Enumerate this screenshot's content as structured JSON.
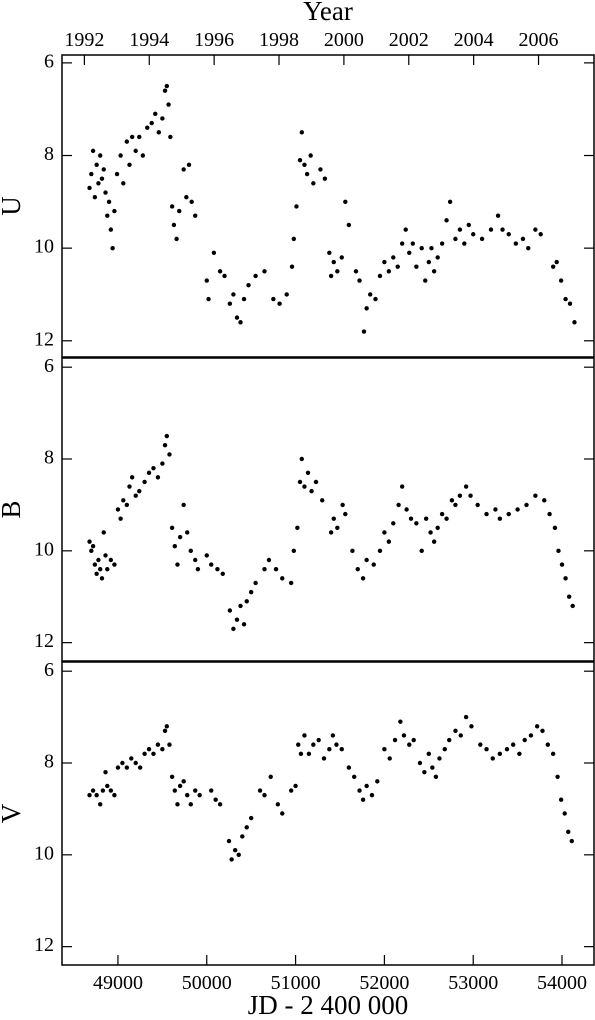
{
  "chart_data": [
    {
      "type": "scatter",
      "ylabel": "U",
      "x2label": "Year",
      "color": "#000000",
      "xlim": [
        48370,
        54360
      ],
      "ylim": [
        5.83,
        12.35
      ],
      "y_inverted": true,
      "yticks": [
        6,
        8,
        10,
        12
      ],
      "x2lim": [
        1991.31,
        2007.71
      ],
      "x2ticks": [
        1992,
        1994,
        1996,
        1998,
        2000,
        2002,
        2004,
        2006
      ],
      "x": [
        48680,
        48700,
        48720,
        48740,
        48760,
        48780,
        48800,
        48820,
        48840,
        48860,
        48880,
        48900,
        48920,
        48940,
        48960,
        48990,
        49030,
        49060,
        49100,
        49130,
        49160,
        49200,
        49240,
        49280,
        49330,
        49380,
        49420,
        49460,
        49500,
        49530,
        49550,
        49570,
        49590,
        49610,
        49630,
        49660,
        49690,
        49740,
        49770,
        49800,
        49830,
        49870,
        50000,
        50020,
        50080,
        50150,
        50200,
        50260,
        50300,
        50340,
        50380,
        50420,
        50470,
        50550,
        50650,
        50750,
        50820,
        50900,
        50960,
        50980,
        51010,
        51050,
        51070,
        51100,
        51130,
        51170,
        51200,
        51280,
        51330,
        51380,
        51400,
        51430,
        51470,
        51520,
        51560,
        51600,
        51680,
        51720,
        51770,
        51800,
        51840,
        51900,
        51950,
        52000,
        52050,
        52100,
        52150,
        52200,
        52240,
        52280,
        52320,
        52360,
        52420,
        52460,
        52500,
        52530,
        52560,
        52600,
        52650,
        52700,
        52740,
        52800,
        52850,
        52900,
        52950,
        53000,
        53100,
        53200,
        53280,
        53330,
        53400,
        53480,
        53560,
        53620,
        53700,
        53760,
        53900,
        53940,
        53990,
        54040,
        54090,
        54140
      ],
      "values": [
        8.7,
        8.4,
        7.9,
        8.9,
        8.2,
        8.6,
        8.0,
        8.5,
        8.3,
        8.8,
        9.3,
        9.0,
        9.6,
        10.0,
        9.2,
        8.4,
        8.0,
        8.6,
        7.7,
        8.2,
        7.6,
        7.9,
        7.6,
        8.0,
        7.4,
        7.3,
        7.1,
        7.5,
        7.2,
        6.6,
        6.5,
        6.9,
        7.6,
        9.1,
        9.5,
        9.8,
        9.2,
        8.3,
        8.9,
        8.2,
        9.0,
        9.3,
        10.7,
        11.1,
        10.1,
        10.5,
        10.6,
        11.2,
        11.0,
        11.5,
        11.6,
        11.1,
        10.8,
        10.6,
        10.5,
        11.1,
        11.2,
        11.0,
        10.4,
        9.8,
        9.1,
        8.1,
        7.5,
        8.2,
        8.4,
        8.0,
        8.6,
        8.3,
        8.5,
        10.1,
        10.6,
        10.3,
        10.5,
        10.2,
        9.0,
        9.5,
        10.5,
        10.7,
        11.8,
        11.3,
        11.0,
        11.1,
        10.6,
        10.3,
        10.5,
        10.2,
        10.4,
        9.9,
        9.6,
        10.1,
        9.9,
        10.4,
        10.0,
        10.7,
        10.3,
        10.0,
        10.5,
        10.2,
        9.9,
        9.4,
        9.0,
        9.8,
        9.6,
        9.9,
        9.5,
        9.7,
        9.8,
        9.6,
        9.3,
        9.6,
        9.7,
        9.9,
        9.8,
        10.0,
        9.6,
        9.7,
        10.4,
        10.3,
        10.7,
        11.1,
        11.2,
        11.6
      ]
    },
    {
      "type": "scatter",
      "ylabel": "B",
      "color": "#000000",
      "xlim": [
        48370,
        54360
      ],
      "ylim": [
        5.8,
        12.4
      ],
      "y_inverted": true,
      "yticks": [
        6,
        8,
        10,
        12
      ],
      "x": [
        48680,
        48700,
        48720,
        48740,
        48760,
        48780,
        48800,
        48820,
        48840,
        48860,
        48880,
        48920,
        48960,
        49000,
        49030,
        49060,
        49100,
        49130,
        49160,
        49200,
        49240,
        49300,
        49350,
        49400,
        49450,
        49500,
        49530,
        49550,
        49580,
        49610,
        49640,
        49670,
        49700,
        49740,
        49780,
        49820,
        49870,
        49900,
        50000,
        50050,
        50120,
        50180,
        50260,
        50300,
        50340,
        50380,
        50420,
        50450,
        50500,
        50550,
        50650,
        50700,
        50780,
        50850,
        50950,
        50980,
        51020,
        51050,
        51070,
        51100,
        51140,
        51180,
        51230,
        51300,
        51400,
        51430,
        51470,
        51530,
        51560,
        51640,
        51700,
        51760,
        51800,
        51880,
        51950,
        52000,
        52050,
        52100,
        52160,
        52200,
        52250,
        52300,
        52360,
        52420,
        52470,
        52520,
        52560,
        52600,
        52650,
        52700,
        52760,
        52800,
        52850,
        52920,
        52970,
        53050,
        53150,
        53250,
        53300,
        53400,
        53500,
        53600,
        53700,
        53800,
        53860,
        53920,
        53960,
        54000,
        54040,
        54080,
        54120
      ],
      "values": [
        9.8,
        10.0,
        9.9,
        10.3,
        10.5,
        10.2,
        10.4,
        10.6,
        9.6,
        10.1,
        10.4,
        10.2,
        10.3,
        9.1,
        9.3,
        8.9,
        9.0,
        8.6,
        8.4,
        8.8,
        8.7,
        8.5,
        8.3,
        8.2,
        8.4,
        8.1,
        7.7,
        7.5,
        7.9,
        9.5,
        9.9,
        10.3,
        9.7,
        9.0,
        9.6,
        10.0,
        10.2,
        10.4,
        10.1,
        10.3,
        10.4,
        10.5,
        11.3,
        11.7,
        11.5,
        11.2,
        11.6,
        11.1,
        10.9,
        10.7,
        10.4,
        10.2,
        10.4,
        10.6,
        10.7,
        10.0,
        9.5,
        8.5,
        8.0,
        8.6,
        8.3,
        8.7,
        8.5,
        8.9,
        9.6,
        9.3,
        9.5,
        9.0,
        9.2,
        10.0,
        10.4,
        10.6,
        10.2,
        10.3,
        10.0,
        9.6,
        9.8,
        9.4,
        9.0,
        8.6,
        9.1,
        9.3,
        9.4,
        10.0,
        9.3,
        9.6,
        9.8,
        9.5,
        9.2,
        9.3,
        8.9,
        9.0,
        8.8,
        8.6,
        8.8,
        9.0,
        9.2,
        9.1,
        9.3,
        9.2,
        9.1,
        9.0,
        8.8,
        8.9,
        9.2,
        9.5,
        10.0,
        10.3,
        10.6,
        11.0,
        11.2
      ]
    },
    {
      "type": "scatter",
      "ylabel": "V",
      "xlabel": "JD - 2 400 000",
      "color": "#000000",
      "xlim": [
        48370,
        54360
      ],
      "ylim": [
        5.8,
        12.4
      ],
      "y_inverted": true,
      "yticks": [
        6,
        8,
        10,
        12
      ],
      "xticks": [
        49000,
        50000,
        51000,
        52000,
        53000,
        54000
      ],
      "x": [
        48680,
        48720,
        48760,
        48800,
        48830,
        48860,
        48880,
        48920,
        48960,
        49000,
        49050,
        49100,
        49150,
        49200,
        49250,
        49300,
        49350,
        49400,
        49450,
        49500,
        49530,
        49550,
        49580,
        49610,
        49640,
        49670,
        49700,
        49740,
        49780,
        49820,
        49870,
        49920,
        50050,
        50100,
        50150,
        50250,
        50280,
        50320,
        50360,
        50400,
        50450,
        50500,
        50600,
        50650,
        50720,
        50800,
        50850,
        50950,
        51000,
        51030,
        51060,
        51100,
        51150,
        51200,
        51260,
        51320,
        51380,
        51420,
        51460,
        51520,
        51600,
        51660,
        51720,
        51760,
        51800,
        51860,
        51920,
        52000,
        52060,
        52120,
        52180,
        52220,
        52280,
        52330,
        52400,
        52450,
        52500,
        52540,
        52580,
        52620,
        52680,
        52730,
        52800,
        52860,
        52920,
        52980,
        53080,
        53150,
        53220,
        53300,
        53380,
        53450,
        53520,
        53580,
        53650,
        53720,
        53780,
        53840,
        53900,
        53950,
        53990,
        54030,
        54070,
        54110
      ],
      "values": [
        8.7,
        8.6,
        8.7,
        8.9,
        8.6,
        8.2,
        8.5,
        8.6,
        8.7,
        8.1,
        8.0,
        8.1,
        7.9,
        8.0,
        8.1,
        7.8,
        7.7,
        7.8,
        7.6,
        7.7,
        7.3,
        7.2,
        7.6,
        8.3,
        8.6,
        8.9,
        8.5,
        8.4,
        8.7,
        8.9,
        8.6,
        8.7,
        8.6,
        8.8,
        8.9,
        9.7,
        10.1,
        9.9,
        10.0,
        9.6,
        9.4,
        9.2,
        8.6,
        8.7,
        8.3,
        8.9,
        9.1,
        8.6,
        8.5,
        7.6,
        7.8,
        7.4,
        7.8,
        7.6,
        7.5,
        7.9,
        7.7,
        7.4,
        7.6,
        7.7,
        8.1,
        8.3,
        8.6,
        8.8,
        8.5,
        8.7,
        8.4,
        7.7,
        7.9,
        7.5,
        7.1,
        7.4,
        7.6,
        7.5,
        8.0,
        8.2,
        7.8,
        8.1,
        8.3,
        7.9,
        7.7,
        7.5,
        7.3,
        7.4,
        7.0,
        7.2,
        7.6,
        7.7,
        7.9,
        7.8,
        7.7,
        7.6,
        7.8,
        7.5,
        7.4,
        7.2,
        7.3,
        7.6,
        7.8,
        8.3,
        8.8,
        9.1,
        9.5,
        9.7
      ]
    }
  ]
}
